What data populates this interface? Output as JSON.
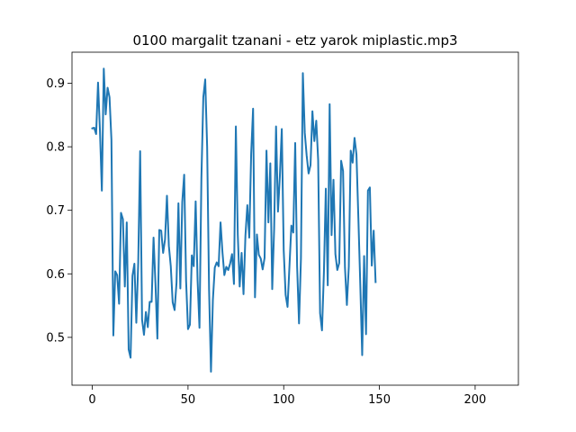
{
  "chart_data": {
    "type": "line",
    "title": "0100 margalit tzanani - etz yarok miplastic.mp3",
    "xlabel": "",
    "ylabel": "",
    "xlim": [
      -10.6,
      222.6
    ],
    "ylim": [
      0.4247,
      0.9489
    ],
    "xticks": [
      0,
      50,
      100,
      150,
      200
    ],
    "yticks": [
      0.5,
      0.6,
      0.7,
      0.8,
      0.9
    ],
    "grid": false,
    "line_color": "#1f77b4",
    "series": [
      {
        "values": [
          0.829,
          0.83,
          0.82,
          0.901,
          0.826,
          0.731,
          0.923,
          0.851,
          0.893,
          0.878,
          0.811,
          0.503,
          0.604,
          0.598,
          0.553,
          0.696,
          0.686,
          0.58,
          0.681,
          0.481,
          0.468,
          0.597,
          0.616,
          0.523,
          0.618,
          0.793,
          0.528,
          0.504,
          0.54,
          0.516,
          0.556,
          0.556,
          0.657,
          0.585,
          0.498,
          0.669,
          0.668,
          0.633,
          0.654,
          0.723,
          0.644,
          0.612,
          0.555,
          0.543,
          0.586,
          0.711,
          0.577,
          0.713,
          0.756,
          0.589,
          0.513,
          0.52,
          0.629,
          0.612,
          0.714,
          0.59,
          0.515,
          0.751,
          0.878,
          0.906,
          0.8,
          0.576,
          0.446,
          0.559,
          0.61,
          0.618,
          0.612,
          0.681,
          0.634,
          0.598,
          0.611,
          0.606,
          0.616,
          0.631,
          0.584,
          0.832,
          0.662,
          0.58,
          0.633,
          0.568,
          0.66,
          0.708,
          0.657,
          0.789,
          0.86,
          0.563,
          0.662,
          0.63,
          0.624,
          0.607,
          0.625,
          0.794,
          0.681,
          0.774,
          0.576,
          0.671,
          0.832,
          0.698,
          0.754,
          0.828,
          0.637,
          0.567,
          0.548,
          0.612,
          0.676,
          0.665,
          0.806,
          0.612,
          0.522,
          0.624,
          0.916,
          0.822,
          0.786,
          0.758,
          0.771,
          0.856,
          0.809,
          0.841,
          0.779,
          0.538,
          0.511,
          0.602,
          0.734,
          0.582,
          0.867,
          0.661,
          0.748,
          0.631,
          0.606,
          0.617,
          0.778,
          0.762,
          0.61,
          0.551,
          0.611,
          0.794,
          0.775,
          0.814,
          0.788,
          0.688,
          0.583,
          0.472,
          0.628,
          0.505,
          0.731,
          0.736,
          0.613,
          0.668,
          0.587
        ]
      }
    ]
  }
}
